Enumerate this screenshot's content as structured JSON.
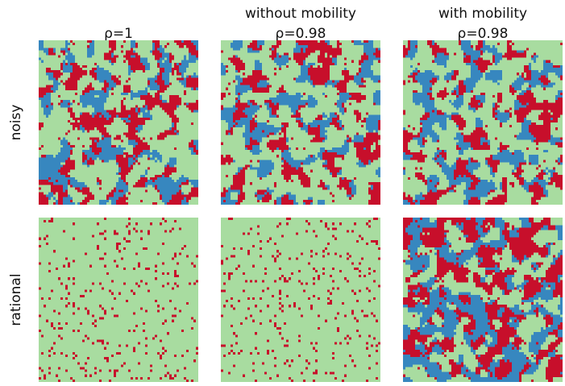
{
  "columns": [
    {
      "lines": [
        "ρ=1"
      ]
    },
    {
      "lines": [
        "without mobility",
        "ρ=0.98"
      ]
    },
    {
      "lines": [
        "with mobility",
        "ρ=0.98"
      ]
    }
  ],
  "rows": [
    "noisy",
    "rational"
  ]
}
